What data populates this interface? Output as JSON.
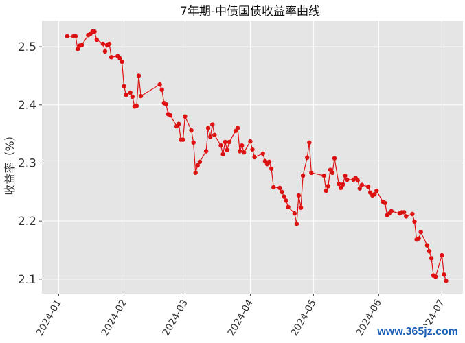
{
  "watermark": "www.365jz.com",
  "chart_data": {
    "type": "line",
    "title": "7年期-中债国债收益率曲线",
    "xlabel": "",
    "ylabel": "收益率（%）",
    "ylim": [
      2.075,
      2.545
    ],
    "xlim": [
      "2023-12-24",
      "2024-07-11"
    ],
    "yticks": [
      2.1,
      2.2,
      2.3,
      2.4,
      2.5
    ],
    "xticks": [
      "2024-01",
      "2024-02",
      "2024-03",
      "2024-04",
      "2024-05",
      "2024-06",
      "2024-07"
    ],
    "grid": true,
    "colors": {
      "line": "#dd1111",
      "background": "#e5e5e5",
      "grid": "#ffffff"
    },
    "series": [
      {
        "x": [
          "2024-01-05",
          "2024-01-08",
          "2024-01-09",
          "2024-01-10",
          "2024-01-11",
          "2024-01-12",
          "2024-01-15",
          "2024-01-16",
          "2024-01-17",
          "2024-01-18",
          "2024-01-19",
          "2024-01-22",
          "2024-01-23",
          "2024-01-24",
          "2024-01-25",
          "2024-01-26",
          "2024-01-29",
          "2024-01-30",
          "2024-01-31",
          "2024-02-01",
          "2024-02-02",
          "2024-02-04",
          "2024-02-05",
          "2024-02-06",
          "2024-02-07",
          "2024-02-08",
          "2024-02-09",
          "2024-02-18",
          "2024-02-19",
          "2024-02-20",
          "2024-02-21",
          "2024-02-22",
          "2024-02-23",
          "2024-02-26",
          "2024-02-27",
          "2024-02-28",
          "2024-02-29",
          "2024-03-01",
          "2024-03-04",
          "2024-03-05",
          "2024-03-06",
          "2024-03-07",
          "2024-03-08",
          "2024-03-11",
          "2024-03-12",
          "2024-03-13",
          "2024-03-14",
          "2024-03-15",
          "2024-03-18",
          "2024-03-19",
          "2024-03-20",
          "2024-03-21",
          "2024-03-22",
          "2024-03-25",
          "2024-03-26",
          "2024-03-27",
          "2024-03-28",
          "2024-03-29",
          "2024-04-01",
          "2024-04-02",
          "2024-04-03",
          "2024-04-07",
          "2024-04-08",
          "2024-04-09",
          "2024-04-10",
          "2024-04-11",
          "2024-04-12",
          "2024-04-15",
          "2024-04-16",
          "2024-04-17",
          "2024-04-18",
          "2024-04-19",
          "2024-04-22",
          "2024-04-23",
          "2024-04-24",
          "2024-04-25",
          "2024-04-26",
          "2024-04-28",
          "2024-04-29",
          "2024-04-30",
          "2024-05-06",
          "2024-05-07",
          "2024-05-08",
          "2024-05-09",
          "2024-05-10",
          "2024-05-11",
          "2024-05-13",
          "2024-05-14",
          "2024-05-15",
          "2024-05-16",
          "2024-05-17",
          "2024-05-20",
          "2024-05-21",
          "2024-05-22",
          "2024-05-23",
          "2024-05-24",
          "2024-05-27",
          "2024-05-28",
          "2024-05-29",
          "2024-05-30",
          "2024-05-31",
          "2024-06-03",
          "2024-06-04",
          "2024-06-05",
          "2024-06-06",
          "2024-06-07",
          "2024-06-11",
          "2024-06-12",
          "2024-06-13",
          "2024-06-14",
          "2024-06-17",
          "2024-06-18",
          "2024-06-19",
          "2024-06-20",
          "2024-06-21",
          "2024-06-24",
          "2024-06-25",
          "2024-06-26",
          "2024-06-27",
          "2024-06-28",
          "2024-07-01",
          "2024-07-02",
          "2024-07-03"
        ],
        "values": [
          2.518,
          2.518,
          2.518,
          2.496,
          2.502,
          2.503,
          2.52,
          2.522,
          2.526,
          2.526,
          2.512,
          2.505,
          2.492,
          2.503,
          2.505,
          2.482,
          2.484,
          2.48,
          2.474,
          2.432,
          2.417,
          2.421,
          2.414,
          2.397,
          2.398,
          2.45,
          2.415,
          2.435,
          2.426,
          2.403,
          2.401,
          2.384,
          2.382,
          2.363,
          2.367,
          2.34,
          2.34,
          2.38,
          2.356,
          2.335,
          2.283,
          2.296,
          2.302,
          2.32,
          2.36,
          2.345,
          2.366,
          2.348,
          2.33,
          2.315,
          2.336,
          2.322,
          2.336,
          2.355,
          2.36,
          2.32,
          2.33,
          2.318,
          2.337,
          2.323,
          2.31,
          2.316,
          2.303,
          2.298,
          2.302,
          2.29,
          2.258,
          2.257,
          2.25,
          2.242,
          2.235,
          2.224,
          2.213,
          2.195,
          2.244,
          2.223,
          2.278,
          2.309,
          2.335,
          2.283,
          2.278,
          2.252,
          2.26,
          2.288,
          2.283,
          2.308,
          2.264,
          2.257,
          2.263,
          2.278,
          2.271,
          2.271,
          2.274,
          2.27,
          2.256,
          2.262,
          2.259,
          2.249,
          2.244,
          2.246,
          2.252,
          2.233,
          2.231,
          2.21,
          2.213,
          2.217,
          2.213,
          2.215,
          2.215,
          2.208,
          2.212,
          2.199,
          2.168,
          2.17,
          2.181,
          2.158,
          2.148,
          2.136,
          2.106,
          2.104,
          2.141,
          2.108,
          2.097
        ]
      }
    ]
  }
}
